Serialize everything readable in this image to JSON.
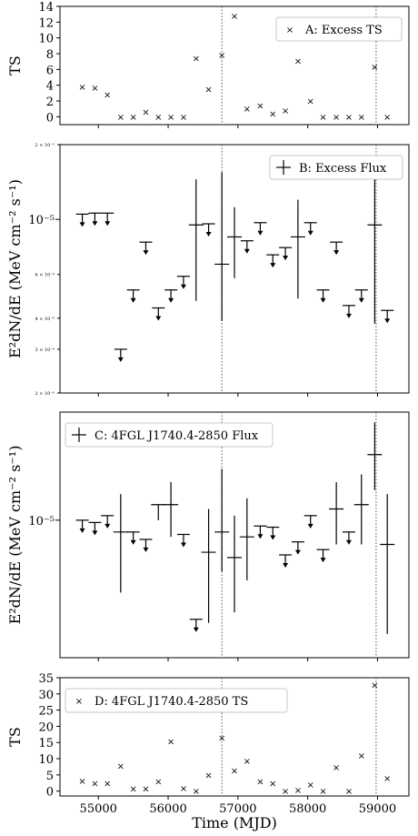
{
  "chart_data": [
    {
      "panel": "A",
      "type": "scatter",
      "legend": "A: Excess TS",
      "ylabel": "TS",
      "ylim": [
        -1,
        14
      ],
      "yticks": [
        0,
        2,
        4,
        6,
        8,
        10,
        12,
        14
      ],
      "x": [
        54770,
        54950,
        55130,
        55320,
        55500,
        55680,
        55860,
        56040,
        56220,
        56400,
        56580,
        56770,
        56950,
        57130,
        57320,
        57500,
        57680,
        57860,
        58040,
        58220,
        58410,
        58590,
        58770,
        58960,
        59140
      ],
      "y": [
        3.8,
        3.7,
        2.8,
        0.0,
        0.0,
        0.6,
        0.0,
        0.0,
        0.0,
        7.4,
        3.5,
        7.8,
        12.8,
        1.0,
        1.4,
        0.4,
        0.8,
        7.1,
        2.0,
        0.0,
        0.0,
        0.0,
        0.0,
        6.3,
        0.0
      ]
    },
    {
      "panel": "B",
      "type": "scatter",
      "legend": "B: Excess Flux",
      "ylabel": "E²dN/dE (MeV cm⁻² s⁻¹)",
      "yscale": "log",
      "ylim": [
        2e-06,
        2e-05
      ],
      "ytick_labels": [
        "2 × 10⁻⁵",
        "10⁻⁵",
        "6 × 10⁻⁶",
        "4 × 10⁻⁶",
        "3 × 10⁻⁶",
        "2 × 10⁻⁶"
      ],
      "upper_limits": [
        {
          "x": 54770,
          "y": 1.05e-05
        },
        {
          "x": 54950,
          "y": 1.06e-05
        },
        {
          "x": 55130,
          "y": 1.06e-05
        },
        {
          "x": 55320,
          "y": 3e-06
        },
        {
          "x": 55500,
          "y": 5.2e-06
        },
        {
          "x": 55680,
          "y": 8.1e-06
        },
        {
          "x": 55860,
          "y": 4.4e-06
        },
        {
          "x": 56040,
          "y": 5.2e-06
        },
        {
          "x": 56220,
          "y": 5.9e-06
        },
        {
          "x": 56580,
          "y": 9.6e-06
        },
        {
          "x": 57130,
          "y": 8.2e-06
        },
        {
          "x": 57320,
          "y": 9.7e-06
        },
        {
          "x": 57500,
          "y": 7.2e-06
        },
        {
          "x": 57680,
          "y": 7.7e-06
        },
        {
          "x": 58040,
          "y": 9.7e-06
        },
        {
          "x": 58220,
          "y": 5.2e-06
        },
        {
          "x": 58410,
          "y": 8.1e-06
        },
        {
          "x": 58590,
          "y": 4.5e-06
        },
        {
          "x": 58770,
          "y": 5.2e-06
        },
        {
          "x": 59140,
          "y": 4.3e-06
        }
      ],
      "points": [
        {
          "x": 56400,
          "y": 9.5e-06,
          "lo": 4.7e-06,
          "hi": 1.45e-05
        },
        {
          "x": 56770,
          "y": 6.6e-06,
          "lo": 3.9e-06,
          "hi": 1.55e-05
        },
        {
          "x": 56950,
          "y": 8.5e-06,
          "lo": 5.8e-06,
          "hi": 1.12e-05
        },
        {
          "x": 57860,
          "y": 8.5e-06,
          "lo": 4.8e-06,
          "hi": 1.2e-05
        },
        {
          "x": 58960,
          "y": 9.5e-06,
          "lo": 3.8e-06,
          "hi": 1.55e-05
        }
      ]
    },
    {
      "panel": "C",
      "type": "scatter",
      "legend": "C: 4FGL J1740.4-2850 Flux",
      "ylabel": "E²dN/dE (MeV cm⁻² s⁻¹)",
      "yscale": "log",
      "ylim": [
        5.5e-06,
        1.6e-05
      ],
      "ytick_labels": [
        "10⁻⁵"
      ],
      "upper_limits": [
        {
          "x": 54770,
          "y": 1e-05
        },
        {
          "x": 54950,
          "y": 9.9e-06
        },
        {
          "x": 55130,
          "y": 1.02e-05
        },
        {
          "x": 55500,
          "y": 9.5e-06
        },
        {
          "x": 55680,
          "y": 9.2e-06
        },
        {
          "x": 56220,
          "y": 9.4e-06
        },
        {
          "x": 56400,
          "y": 6.5e-06
        },
        {
          "x": 57320,
          "y": 9.75e-06
        },
        {
          "x": 57500,
          "y": 9.7e-06
        },
        {
          "x": 57680,
          "y": 8.6e-06
        },
        {
          "x": 57860,
          "y": 9.1e-06
        },
        {
          "x": 58040,
          "y": 1.02e-05
        },
        {
          "x": 58220,
          "y": 8.8e-06
        },
        {
          "x": 58590,
          "y": 9.5e-06
        }
      ],
      "points": [
        {
          "x": 55320,
          "y": 9.5e-06,
          "lo": 7.3e-06,
          "hi": 1.12e-05
        },
        {
          "x": 55860,
          "y": 1.07e-05,
          "lo": 1e-05,
          "hi": 1.07e-05
        },
        {
          "x": 56040,
          "y": 1.07e-05,
          "lo": 9.3e-06,
          "hi": 1.18e-05
        },
        {
          "x": 56580,
          "y": 8.7e-06,
          "lo": 6.4e-06,
          "hi": 1.05e-05
        },
        {
          "x": 56770,
          "y": 9.5e-06,
          "lo": 8e-06,
          "hi": 1.25e-05
        },
        {
          "x": 56950,
          "y": 8.5e-06,
          "lo": 6.7e-06,
          "hi": 1.02e-05
        },
        {
          "x": 57130,
          "y": 9.3e-06,
          "lo": 7.7e-06,
          "hi": 1.1e-05
        },
        {
          "x": 58410,
          "y": 1.05e-05,
          "lo": 9e-06,
          "hi": 1.18e-05
        },
        {
          "x": 58770,
          "y": 1.07e-05,
          "lo": 9e-06,
          "hi": 1.22e-05
        },
        {
          "x": 58960,
          "y": 1.33e-05,
          "lo": 1.14e-05,
          "hi": 1.53e-05
        },
        {
          "x": 59140,
          "y": 9e-06,
          "lo": 6.1e-06,
          "hi": 1.12e-05
        }
      ]
    },
    {
      "panel": "D",
      "type": "scatter",
      "legend": "D: 4FGL J1740.4-2850 TS",
      "ylabel": "TS",
      "xlabel": "Time (MJD)",
      "ylim": [
        -1.5,
        35
      ],
      "yticks": [
        0,
        5,
        10,
        15,
        20,
        25,
        30,
        35
      ],
      "x": [
        54770,
        54950,
        55130,
        55320,
        55500,
        55680,
        55860,
        56040,
        56220,
        56400,
        56580,
        56770,
        56950,
        57130,
        57320,
        57500,
        57680,
        57860,
        58040,
        58220,
        58410,
        58590,
        58770,
        58960,
        59140
      ],
      "y": [
        3.2,
        2.5,
        2.5,
        7.8,
        0.8,
        0.8,
        3.0,
        15.3,
        0.9,
        0.0,
        5.0,
        16.5,
        6.3,
        9.3,
        3.0,
        2.5,
        0.0,
        0.3,
        2.0,
        0.0,
        7.3,
        0.0,
        11.0,
        32.8,
        4.0
      ]
    }
  ],
  "shared": {
    "xlim": [
      54450,
      59450
    ],
    "xticks": [
      55000,
      56000,
      57000,
      58000,
      59000
    ],
    "xtick_labels": [
      "55000",
      "56000",
      "57000",
      "58000",
      "59000"
    ],
    "xlabel": "Time (MJD)",
    "vlines": [
      56770,
      58980
    ]
  }
}
